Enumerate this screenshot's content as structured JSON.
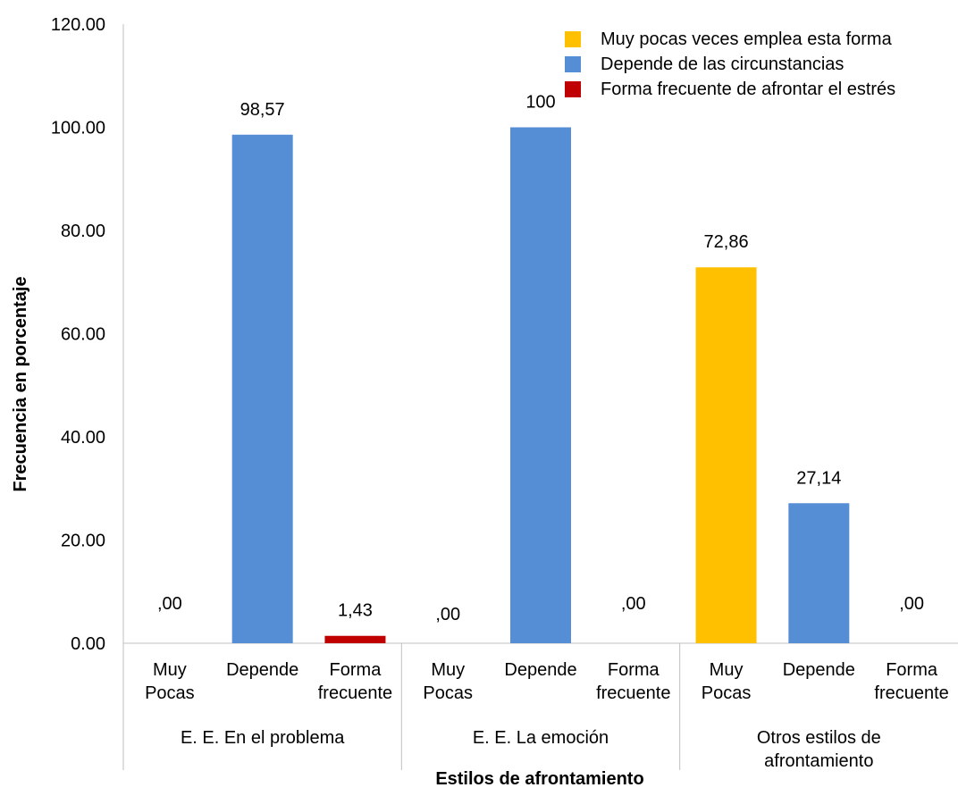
{
  "chart_data": {
    "type": "bar",
    "xlabel": "Estilos de afrontamiento",
    "ylabel": "Frecuencia en porcentaje",
    "ylim": [
      0,
      120
    ],
    "yticks": [
      "0.00",
      "20.00",
      "40.00",
      "60.00",
      "80.00",
      "100.00",
      "120.00"
    ],
    "grid": false,
    "legend_position": "top-right",
    "series": [
      {
        "name": "Muy pocas veces emplea esta forma",
        "color": "#FFC000"
      },
      {
        "name": "Depende de las circunstancias",
        "color": "#558ED5"
      },
      {
        "name": "Forma frecuente de afrontar el estrés",
        "color": "#C00000"
      }
    ],
    "groups": [
      {
        "label_lines": [
          "E. E. En el problema"
        ],
        "bars": [
          {
            "category_lines": [
              "Muy",
              "Pocas"
            ],
            "series": 0,
            "value": 0,
            "label": ",00"
          },
          {
            "category_lines": [
              "Depende"
            ],
            "series": 1,
            "value": 98.57,
            "label": "98,57"
          },
          {
            "category_lines": [
              "Forma",
              "frecuente"
            ],
            "series": 2,
            "value": 1.43,
            "label": "1,43"
          }
        ]
      },
      {
        "label_lines": [
          "E. E. La emoción"
        ],
        "bars": [
          {
            "category_lines": [
              "Muy",
              "Pocas"
            ],
            "series": 0,
            "value": 0,
            "label": ",00"
          },
          {
            "category_lines": [
              "Depende"
            ],
            "series": 1,
            "value": 100,
            "label": "100"
          },
          {
            "category_lines": [
              "Forma",
              "frecuente"
            ],
            "series": 2,
            "value": 0,
            "label": ",00"
          }
        ]
      },
      {
        "label_lines": [
          "Otros estilos de",
          "afrontamiento"
        ],
        "bars": [
          {
            "category_lines": [
              "Muy",
              "Pocas"
            ],
            "series": 0,
            "value": 72.86,
            "label": "72,86"
          },
          {
            "category_lines": [
              "Depende"
            ],
            "series": 1,
            "value": 27.14,
            "label": "27,14"
          },
          {
            "category_lines": [
              "Forma",
              "frecuente"
            ],
            "series": 2,
            "value": 0,
            "label": ",00"
          }
        ]
      }
    ]
  }
}
